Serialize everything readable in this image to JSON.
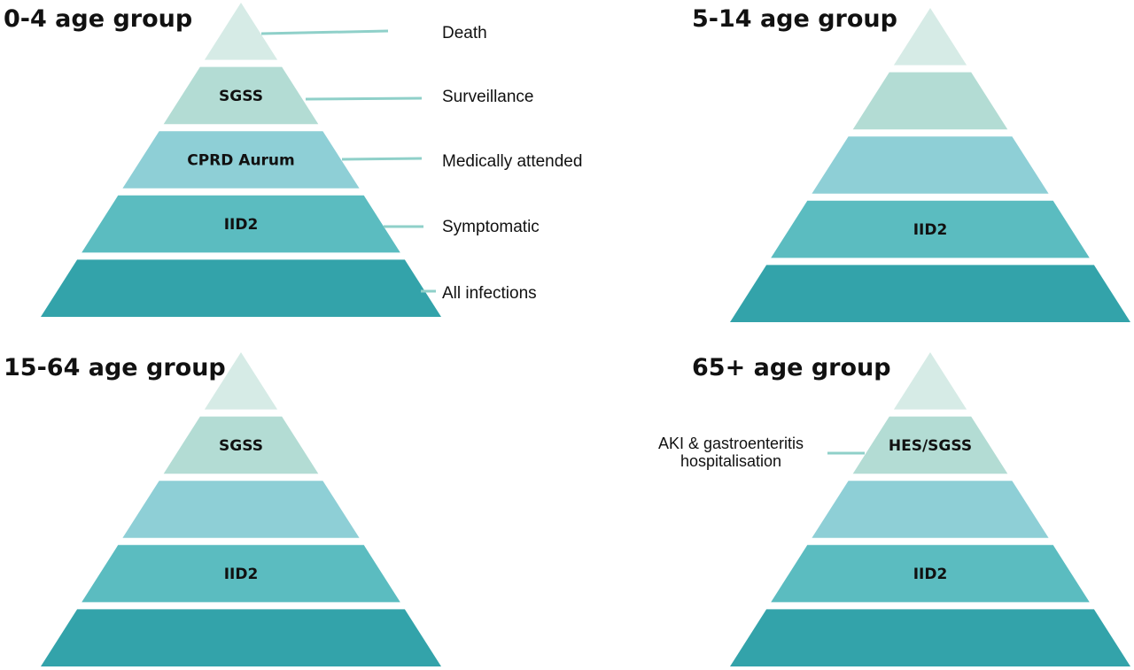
{
  "colors": {
    "level_1": "#d6ebe6",
    "level_2": "#b3dcd4",
    "level_3": "#8ecfd6",
    "level_4": "#5bbcc0",
    "level_5": "#33a3aa",
    "connector": "#8fd0c9"
  },
  "levels": [
    "Death",
    "Surveillance",
    "Medically attended",
    "Symptomatic",
    "All infections"
  ],
  "pyramids": [
    {
      "title": "0-4 age group",
      "layer_labels": [
        "",
        "SGSS",
        "CPRD Aurum",
        "IID2",
        ""
      ]
    },
    {
      "title": "5-14 age group",
      "layer_labels": [
        "",
        "",
        "",
        "IID2",
        ""
      ]
    },
    {
      "title": "15-64 age group",
      "layer_labels": [
        "",
        "SGSS",
        "",
        "IID2",
        ""
      ]
    },
    {
      "title": "65+ age group",
      "layer_labels": [
        "",
        "HES/SGSS",
        "",
        "IID2",
        ""
      ]
    }
  ],
  "callout": {
    "lines": [
      "AKI & gastroenteritis",
      "hospitalisation"
    ]
  }
}
